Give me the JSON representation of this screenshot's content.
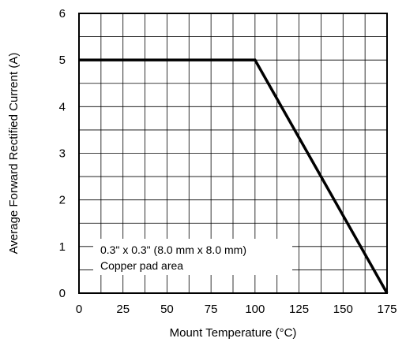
{
  "chart_data": {
    "type": "line",
    "title": "",
    "xlabel": "Mount Temperature (°C)",
    "ylabel": "Average Forward Rectified Current (A)",
    "xlim": [
      0,
      175
    ],
    "ylim": [
      0,
      6
    ],
    "xticks": [
      0,
      25,
      50,
      75,
      100,
      125,
      150,
      175
    ],
    "yticks": [
      0,
      1,
      2,
      3,
      4,
      5,
      6
    ],
    "grid": true,
    "grid_minor": {
      "x_step": 12.5,
      "y_step": 0.5
    },
    "series": [
      {
        "x": [
          0,
          100,
          175
        ],
        "y": [
          5,
          5,
          0
        ],
        "color": "#000000"
      }
    ],
    "annotation": {
      "lines": [
        "0.3\" x 0.3\" (8.0 mm x 8.0 mm)",
        "Copper pad area"
      ]
    }
  }
}
